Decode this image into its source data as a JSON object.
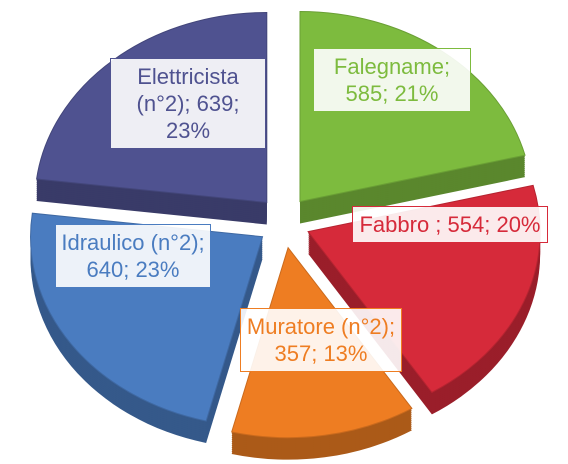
{
  "chart_data": {
    "type": "pie",
    "values": [
      585,
      554,
      357,
      640,
      639
    ],
    "value_labels": [
      "Falegname; 585; 21%",
      "Fabbro ; 554; 20%",
      "Muratore (n°2); 357; 13%",
      "Idraulico (n°2); 640; 23%",
      "Elettricista (n°2); 639; 23%"
    ],
    "colors": [
      "#7dbb3e",
      "#d62a3a",
      "#ee7d22",
      "#4a7cc0",
      "#4f5290"
    ]
  }
}
